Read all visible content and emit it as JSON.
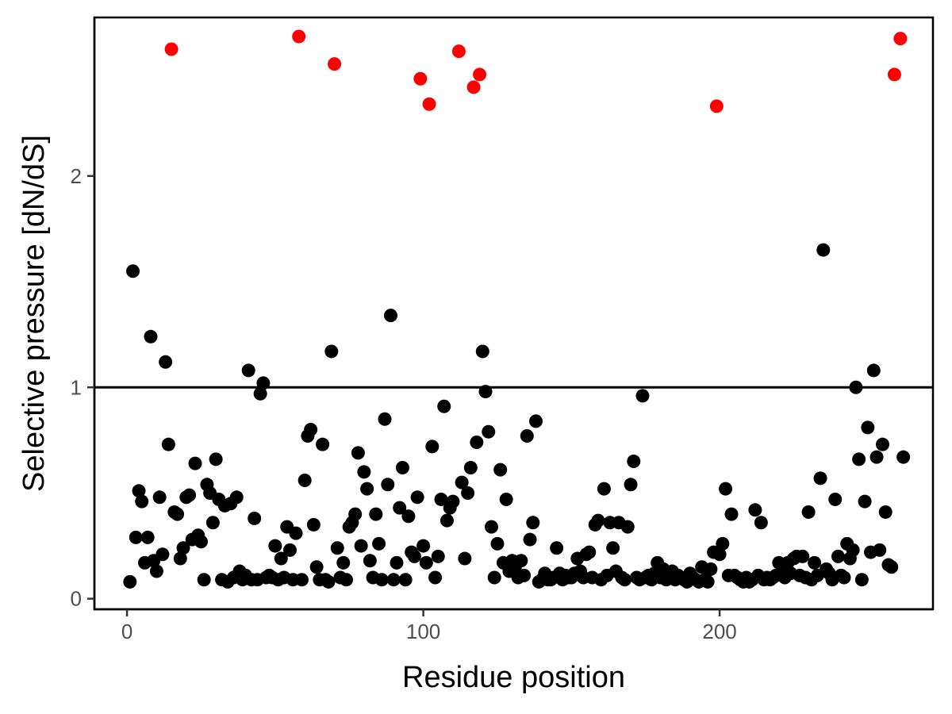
{
  "chart_data": {
    "type": "scatter",
    "xlabel": "Residue position",
    "ylabel": "Selective pressure [dN/dS]",
    "xlim": [
      -11,
      272
    ],
    "ylim": [
      -0.05,
      2.75
    ],
    "x_ticks": [
      0,
      100,
      200
    ],
    "y_ticks": [
      0,
      1,
      2
    ],
    "reference_line_y": 1,
    "grid": false,
    "colors": {
      "above_line": "#ff0000",
      "below_line": "#000000",
      "reference_line": "#000000"
    },
    "series": [
      {
        "points": [
          [
            15,
            2.6
          ],
          [
            58,
            2.66
          ],
          [
            70,
            2.53
          ],
          [
            99,
            2.46
          ],
          [
            102,
            2.34
          ],
          [
            112,
            2.59
          ],
          [
            117,
            2.42
          ],
          [
            119,
            2.48
          ],
          [
            199,
            2.33
          ],
          [
            259,
            2.48
          ],
          [
            261,
            2.65
          ],
          [
            2,
            1.55
          ],
          [
            8,
            1.24
          ],
          [
            13,
            1.12
          ],
          [
            41,
            1.08
          ],
          [
            46,
            1.02
          ],
          [
            45,
            0.97
          ],
          [
            89,
            1.34
          ],
          [
            69,
            1.17
          ],
          [
            120,
            1.17
          ],
          [
            121,
            0.98
          ],
          [
            174,
            0.96
          ],
          [
            235,
            1.65
          ],
          [
            246,
            1.0
          ],
          [
            252,
            1.08
          ],
          [
            1,
            0.08
          ],
          [
            3,
            0.29
          ],
          [
            4,
            0.51
          ],
          [
            5,
            0.46
          ],
          [
            6,
            0.17
          ],
          [
            7,
            0.29
          ],
          [
            9,
            0.18
          ],
          [
            10,
            0.13
          ],
          [
            11,
            0.48
          ],
          [
            12,
            0.21
          ],
          [
            14,
            0.73
          ],
          [
            16,
            0.41
          ],
          [
            17,
            0.4
          ],
          [
            18,
            0.19
          ],
          [
            19,
            0.24
          ],
          [
            20,
            0.48
          ],
          [
            21,
            0.49
          ],
          [
            22,
            0.28
          ],
          [
            23,
            0.64
          ],
          [
            24,
            0.3
          ],
          [
            25,
            0.27
          ],
          [
            26,
            0.09
          ],
          [
            27,
            0.54
          ],
          [
            28,
            0.5
          ],
          [
            29,
            0.36
          ],
          [
            30,
            0.66
          ],
          [
            31,
            0.47
          ],
          [
            32,
            0.09
          ],
          [
            33,
            0.44
          ],
          [
            34,
            0.08
          ],
          [
            35,
            0.45
          ],
          [
            36,
            0.1
          ],
          [
            37,
            0.48
          ],
          [
            38,
            0.13
          ],
          [
            39,
            0.09
          ],
          [
            40,
            0.11
          ],
          [
            42,
            0.09
          ],
          [
            43,
            0.38
          ],
          [
            44,
            0.09
          ],
          [
            47,
            0.1
          ],
          [
            48,
            0.11
          ],
          [
            49,
            0.1
          ],
          [
            50,
            0.25
          ],
          [
            51,
            0.09
          ],
          [
            52,
            0.19
          ],
          [
            53,
            0.1
          ],
          [
            54,
            0.34
          ],
          [
            55,
            0.23
          ],
          [
            56,
            0.09
          ],
          [
            57,
            0.31
          ],
          [
            59,
            0.09
          ],
          [
            60,
            0.56
          ],
          [
            61,
            0.77
          ],
          [
            62,
            0.8
          ],
          [
            63,
            0.35
          ],
          [
            64,
            0.15
          ],
          [
            65,
            0.09
          ],
          [
            66,
            0.73
          ],
          [
            67,
            0.09
          ],
          [
            68,
            0.08
          ],
          [
            71,
            0.24
          ],
          [
            72,
            0.1
          ],
          [
            73,
            0.17
          ],
          [
            74,
            0.09
          ],
          [
            75,
            0.34
          ],
          [
            76,
            0.36
          ],
          [
            77,
            0.4
          ],
          [
            78,
            0.69
          ],
          [
            79,
            0.25
          ],
          [
            80,
            0.6
          ],
          [
            81,
            0.52
          ],
          [
            82,
            0.18
          ],
          [
            83,
            0.1
          ],
          [
            84,
            0.4
          ],
          [
            85,
            0.26
          ],
          [
            86,
            0.09
          ],
          [
            87,
            0.85
          ],
          [
            88,
            0.54
          ],
          [
            90,
            0.09
          ],
          [
            91,
            0.17
          ],
          [
            92,
            0.43
          ],
          [
            93,
            0.62
          ],
          [
            94,
            0.09
          ],
          [
            95,
            0.39
          ],
          [
            96,
            0.22
          ],
          [
            97,
            0.2
          ],
          [
            98,
            0.48
          ],
          [
            100,
            0.25
          ],
          [
            101,
            0.17
          ],
          [
            103,
            0.72
          ],
          [
            104,
            0.1
          ],
          [
            105,
            0.2
          ],
          [
            106,
            0.47
          ],
          [
            107,
            0.91
          ],
          [
            108,
            0.37
          ],
          [
            109,
            0.43
          ],
          [
            110,
            0.46
          ],
          [
            113,
            0.55
          ],
          [
            114,
            0.19
          ],
          [
            115,
            0.5
          ],
          [
            116,
            0.62
          ],
          [
            118,
            0.74
          ],
          [
            122,
            0.79
          ],
          [
            123,
            0.34
          ],
          [
            124,
            0.1
          ],
          [
            125,
            0.26
          ],
          [
            126,
            0.61
          ],
          [
            127,
            0.17
          ],
          [
            128,
            0.47
          ],
          [
            129,
            0.13
          ],
          [
            130,
            0.18
          ],
          [
            131,
            0.15
          ],
          [
            132,
            0.1
          ],
          [
            133,
            0.18
          ],
          [
            134,
            0.11
          ],
          [
            135,
            0.77
          ],
          [
            136,
            0.28
          ],
          [
            137,
            0.36
          ],
          [
            138,
            0.84
          ],
          [
            139,
            0.08
          ],
          [
            140,
            0.09
          ],
          [
            141,
            0.12
          ],
          [
            142,
            0.09
          ],
          [
            143,
            0.09
          ],
          [
            144,
            0.1
          ],
          [
            145,
            0.24
          ],
          [
            146,
            0.12
          ],
          [
            147,
            0.09
          ],
          [
            148,
            0.11
          ],
          [
            149,
            0.1
          ],
          [
            150,
            0.1
          ],
          [
            151,
            0.12
          ],
          [
            152,
            0.19
          ],
          [
            153,
            0.13
          ],
          [
            154,
            0.1
          ],
          [
            155,
            0.21
          ],
          [
            156,
            0.22
          ],
          [
            157,
            0.1
          ],
          [
            158,
            0.35
          ],
          [
            159,
            0.37
          ],
          [
            160,
            0.09
          ],
          [
            161,
            0.52
          ],
          [
            162,
            0.11
          ],
          [
            163,
            0.36
          ],
          [
            164,
            0.24
          ],
          [
            165,
            0.13
          ],
          [
            166,
            0.36
          ],
          [
            167,
            0.1
          ],
          [
            168,
            0.09
          ],
          [
            169,
            0.34
          ],
          [
            170,
            0.54
          ],
          [
            171,
            0.65
          ],
          [
            172,
            0.1
          ],
          [
            173,
            0.09
          ],
          [
            175,
            0.1
          ],
          [
            176,
            0.11
          ],
          [
            177,
            0.09
          ],
          [
            178,
            0.12
          ],
          [
            179,
            0.17
          ],
          [
            180,
            0.1
          ],
          [
            181,
            0.14
          ],
          [
            182,
            0.09
          ],
          [
            183,
            0.1
          ],
          [
            184,
            0.13
          ],
          [
            185,
            0.09
          ],
          [
            186,
            0.11
          ],
          [
            187,
            0.1
          ],
          [
            188,
            0.09
          ],
          [
            189,
            0.08
          ],
          [
            190,
            0.12
          ],
          [
            191,
            0.1
          ],
          [
            192,
            0.09
          ],
          [
            193,
            0.08
          ],
          [
            194,
            0.15
          ],
          [
            195,
            0.09
          ],
          [
            196,
            0.08
          ],
          [
            197,
            0.14
          ],
          [
            198,
            0.22
          ],
          [
            200,
            0.21
          ],
          [
            201,
            0.26
          ],
          [
            202,
            0.52
          ],
          [
            203,
            0.11
          ],
          [
            204,
            0.4
          ],
          [
            205,
            0.11
          ],
          [
            206,
            0.1
          ],
          [
            207,
            0.09
          ],
          [
            208,
            0.08
          ],
          [
            209,
            0.1
          ],
          [
            210,
            0.08
          ],
          [
            211,
            0.09
          ],
          [
            212,
            0.42
          ],
          [
            213,
            0.11
          ],
          [
            214,
            0.36
          ],
          [
            215,
            0.09
          ],
          [
            216,
            0.1
          ],
          [
            217,
            0.09
          ],
          [
            218,
            0.1
          ],
          [
            219,
            0.11
          ],
          [
            220,
            0.17
          ],
          [
            221,
            0.12
          ],
          [
            222,
            0.1
          ],
          [
            223,
            0.17
          ],
          [
            224,
            0.12
          ],
          [
            225,
            0.19
          ],
          [
            226,
            0.2
          ],
          [
            227,
            0.11
          ],
          [
            228,
            0.2
          ],
          [
            229,
            0.1
          ],
          [
            230,
            0.41
          ],
          [
            231,
            0.09
          ],
          [
            232,
            0.17
          ],
          [
            233,
            0.11
          ],
          [
            234,
            0.57
          ],
          [
            236,
            0.14
          ],
          [
            237,
            0.12
          ],
          [
            238,
            0.09
          ],
          [
            239,
            0.47
          ],
          [
            240,
            0.2
          ],
          [
            241,
            0.11
          ],
          [
            242,
            0.1
          ],
          [
            243,
            0.26
          ],
          [
            244,
            0.19
          ],
          [
            245,
            0.23
          ],
          [
            247,
            0.66
          ],
          [
            248,
            0.09
          ],
          [
            249,
            0.46
          ],
          [
            250,
            0.81
          ],
          [
            251,
            0.22
          ],
          [
            253,
            0.67
          ],
          [
            254,
            0.23
          ],
          [
            255,
            0.73
          ],
          [
            256,
            0.41
          ],
          [
            257,
            0.16
          ],
          [
            258,
            0.15
          ],
          [
            262,
            0.67
          ]
        ]
      }
    ]
  }
}
